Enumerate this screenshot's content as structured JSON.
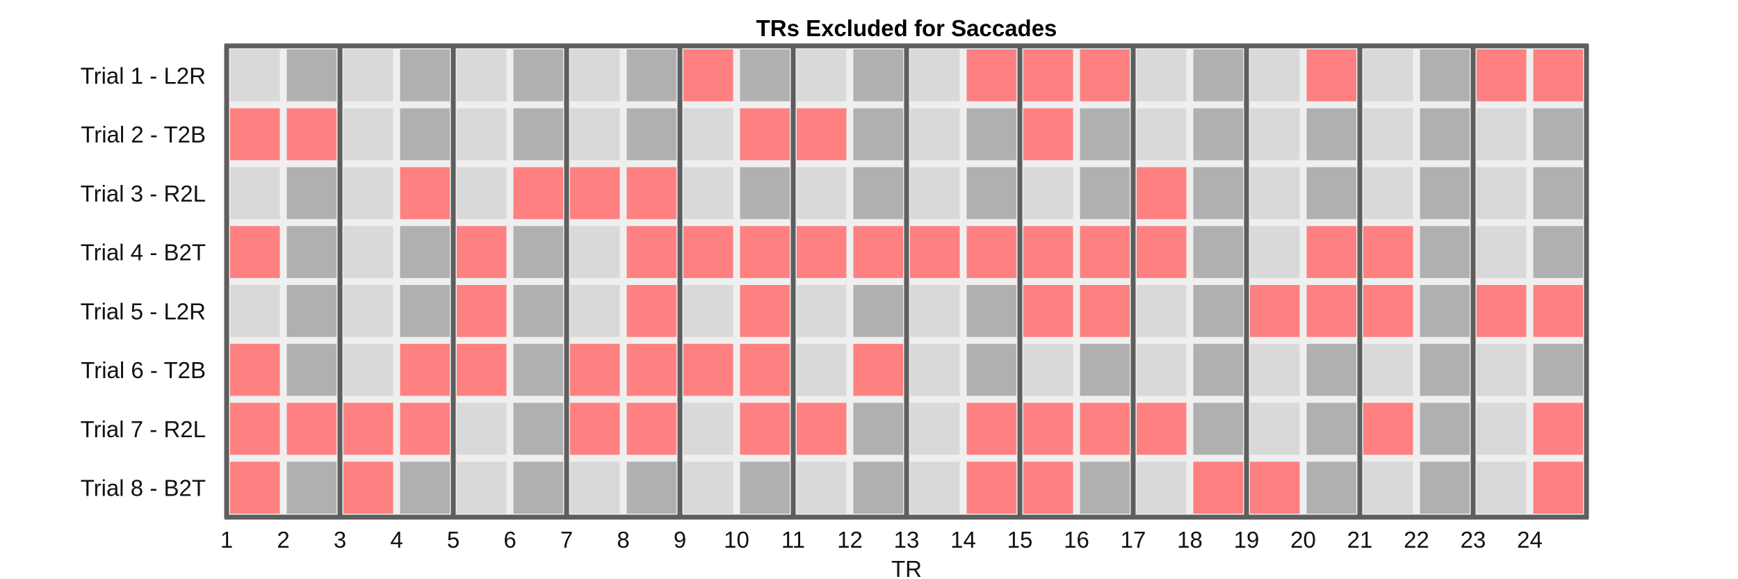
{
  "chart_data": {
    "type": "heatmap",
    "title": "TRs Excluded for Saccades",
    "xlabel": "TR",
    "ylabel": "",
    "x_ticks": [
      "1",
      "2",
      "3",
      "4",
      "5",
      "6",
      "7",
      "8",
      "9",
      "10",
      "11",
      "12",
      "13",
      "14",
      "15",
      "16",
      "17",
      "18",
      "19",
      "20",
      "21",
      "22",
      "23",
      "24"
    ],
    "rows": [
      "Trial 1 - L2R",
      "Trial 2 - T2B",
      "Trial 3 - R2L",
      "Trial 4 - B2T",
      "Trial 5 - L2R",
      "Trial 6 - T2B",
      "Trial 7 - R2L",
      "Trial 8 - B2T"
    ],
    "excluded": [
      [
        0,
        0,
        0,
        0,
        0,
        0,
        0,
        0,
        1,
        0,
        0,
        0,
        0,
        1,
        1,
        1,
        0,
        0,
        0,
        1,
        0,
        0,
        1,
        1
      ],
      [
        1,
        1,
        0,
        0,
        0,
        0,
        0,
        0,
        0,
        1,
        1,
        0,
        0,
        0,
        1,
        0,
        0,
        0,
        0,
        0,
        0,
        0,
        0,
        0
      ],
      [
        0,
        0,
        0,
        1,
        0,
        1,
        1,
        1,
        0,
        0,
        0,
        0,
        0,
        0,
        0,
        0,
        1,
        0,
        0,
        0,
        0,
        0,
        0,
        0
      ],
      [
        1,
        0,
        0,
        0,
        1,
        0,
        0,
        1,
        1,
        1,
        1,
        1,
        1,
        1,
        1,
        1,
        1,
        0,
        0,
        1,
        1,
        0,
        0,
        0
      ],
      [
        0,
        0,
        0,
        0,
        1,
        0,
        0,
        1,
        0,
        1,
        0,
        0,
        0,
        0,
        1,
        1,
        0,
        0,
        1,
        1,
        1,
        0,
        1,
        1
      ],
      [
        1,
        0,
        0,
        1,
        1,
        0,
        1,
        1,
        1,
        1,
        0,
        1,
        0,
        0,
        0,
        0,
        0,
        0,
        0,
        0,
        0,
        0,
        0,
        0
      ],
      [
        1,
        1,
        1,
        1,
        0,
        0,
        1,
        1,
        0,
        1,
        1,
        0,
        0,
        1,
        1,
        1,
        1,
        0,
        0,
        0,
        1,
        0,
        0,
        1
      ],
      [
        1,
        0,
        1,
        0,
        0,
        0,
        0,
        0,
        0,
        0,
        0,
        0,
        0,
        1,
        1,
        0,
        0,
        1,
        1,
        0,
        0,
        0,
        0,
        1
      ]
    ],
    "legend": "none",
    "colors": {
      "excluded": "#ff8080",
      "included_odd_tr": "#d9d9d9",
      "included_even_tr": "#b0b0b0",
      "grid_gap": "#efefef",
      "block_divider": "#5e5e5e"
    }
  }
}
